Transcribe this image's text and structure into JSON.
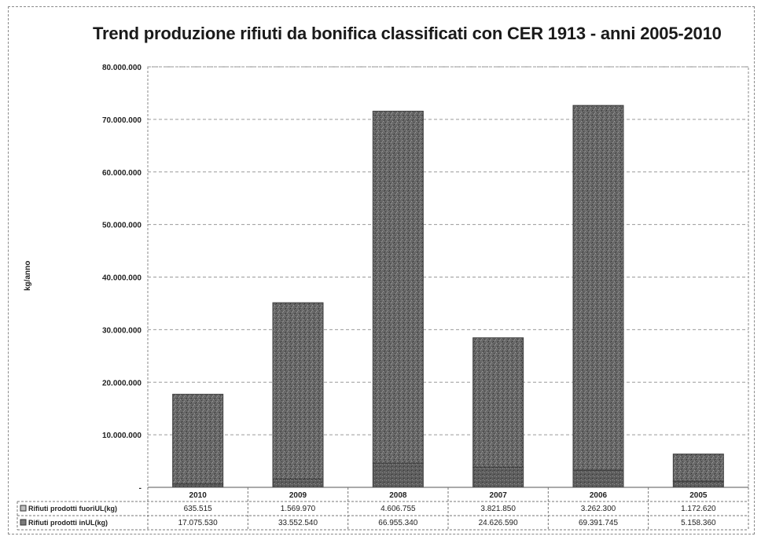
{
  "chart_data": {
    "type": "bar",
    "stacked": true,
    "title": "Trend produzione rifiuti da bonifica classificati con CER 1913 - anni 2005-2010",
    "ylabel": "kg/anno",
    "xlabel": "",
    "ylim": [
      0,
      80000000
    ],
    "yticks": [
      0,
      10000000,
      20000000,
      30000000,
      40000000,
      50000000,
      60000000,
      70000000,
      80000000
    ],
    "ytick_labels": [
      "-",
      "10.000.000",
      "20.000.000",
      "30.000.000",
      "40.000.000",
      "50.000.000",
      "60.000.000",
      "70.000.000",
      "80.000.000"
    ],
    "grid": true,
    "categories": [
      "2010",
      "2009",
      "2008",
      "2007",
      "2006",
      "2005"
    ],
    "series": [
      {
        "name": "Rifiuti prodotti fuoriUL(kg)",
        "values": [
          635515,
          1569970,
          4606755,
          3821850,
          3262300,
          1172620
        ],
        "value_labels": [
          "635.515",
          "1.569.970",
          "4.606.755",
          "3.821.850",
          "3.262.300",
          "1.172.620"
        ]
      },
      {
        "name": "Rifiuti prodotti inUL(kg)",
        "values": [
          17075530,
          33552540,
          66955340,
          24626590,
          69391745,
          5158360
        ],
        "value_labels": [
          "17.075.530",
          "33.552.540",
          "66.955.340",
          "24.626.590",
          "69.391.745",
          "5.158.360"
        ]
      }
    ],
    "legend": "data-table",
    "colors": {
      "bar": "#6b6b6b",
      "bar_dark": "#3c3c3c",
      "grid": "#9a9a9a"
    }
  }
}
